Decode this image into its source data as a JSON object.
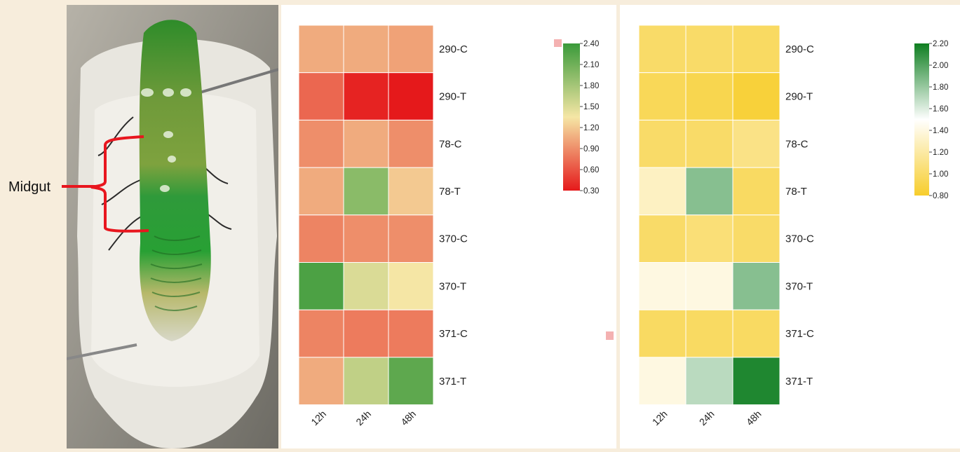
{
  "photo": {
    "label": "Midgut"
  },
  "chart_data": [
    {
      "type": "heatmap",
      "columns": [
        "12h",
        "24h",
        "48h"
      ],
      "rows": [
        "290-C",
        "290-T",
        "78-C",
        "78-T",
        "370-C",
        "370-T",
        "371-C",
        "371-T"
      ],
      "values": [
        [
          1.05,
          1.05,
          1.0
        ],
        [
          0.7,
          0.35,
          0.3
        ],
        [
          0.9,
          1.05,
          0.9
        ],
        [
          1.05,
          1.95,
          1.2
        ],
        [
          0.85,
          0.9,
          0.9
        ],
        [
          2.3,
          1.5,
          1.35
        ],
        [
          0.85,
          0.8,
          0.8
        ],
        [
          1.05,
          1.65,
          2.2
        ]
      ],
      "colorbar": {
        "ticks": [
          "2.40",
          "2.10",
          "1.80",
          "1.50",
          "1.20",
          "0.90",
          "0.60",
          "0.30"
        ],
        "min": 0.3,
        "max": 2.4,
        "colors": [
          "#e5191b",
          "#f5e6a5",
          "#3a9a3a"
        ]
      }
    },
    {
      "type": "heatmap",
      "columns": [
        "12h",
        "24h",
        "48h"
      ],
      "rows": [
        "290-C",
        "290-T",
        "78-C",
        "78-T",
        "370-C",
        "370-T",
        "371-C",
        "371-T"
      ],
      "values": [
        [
          1.0,
          1.0,
          0.98
        ],
        [
          0.95,
          0.92,
          0.85
        ],
        [
          1.0,
          1.0,
          1.1
        ],
        [
          1.3,
          1.85,
          0.98
        ],
        [
          1.0,
          1.05,
          1.0
        ],
        [
          1.4,
          1.4,
          1.85
        ],
        [
          0.98,
          0.98,
          0.98
        ],
        [
          1.4,
          1.7,
          2.15
        ]
      ],
      "colorbar": {
        "ticks": [
          "2.20",
          "2.00",
          "1.80",
          "1.60",
          "1.40",
          "1.20",
          "1.00",
          "0.80"
        ],
        "min": 0.8,
        "max": 2.2,
        "colors": [
          "#f7cd2b",
          "#ffffff",
          "#0e7e20"
        ]
      }
    }
  ]
}
